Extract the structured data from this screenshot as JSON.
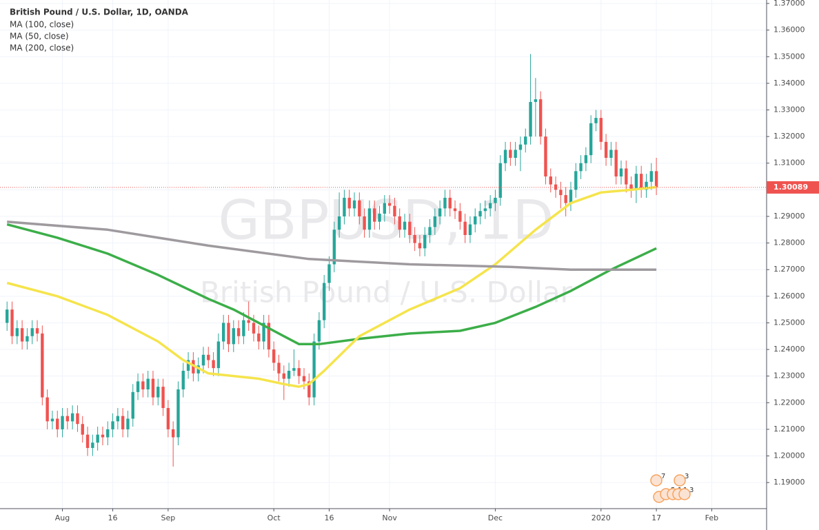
{
  "chart_data": {
    "type": "candlestick",
    "title": "British Pound / U.S. Dollar, 1D, OANDA",
    "watermark": "GBPUSD, 1D",
    "watermark_subtitle": "British Pound / U.S. Dollar",
    "grid": true,
    "up_color": "#26a69a",
    "down_color": "#ef5350",
    "xlim": [
      -1.4,
      150.9
    ],
    "ylim": [
      1.1802,
      1.3713
    ],
    "xticks": [
      {
        "value": 11,
        "label": "Aug"
      },
      {
        "value": 21,
        "label": "16"
      },
      {
        "value": 32,
        "label": "Sep"
      },
      {
        "value": 53,
        "label": "Oct"
      },
      {
        "value": 64,
        "label": "16"
      },
      {
        "value": 76,
        "label": "Nov"
      },
      {
        "value": 97,
        "label": "Dec"
      },
      {
        "value": 118,
        "label": "2020"
      },
      {
        "value": 129,
        "label": "17"
      },
      {
        "value": 140,
        "label": "Feb"
      }
    ],
    "yticks": [
      {
        "value": 1.19,
        "label": "1.19000"
      },
      {
        "value": 1.2,
        "label": "1.20000"
      },
      {
        "value": 1.21,
        "label": "1.21000"
      },
      {
        "value": 1.22,
        "label": "1.22000"
      },
      {
        "value": 1.23,
        "label": "1.23000"
      },
      {
        "value": 1.24,
        "label": "1.24000"
      },
      {
        "value": 1.25,
        "label": "1.25000"
      },
      {
        "value": 1.26,
        "label": "1.26000"
      },
      {
        "value": 1.27,
        "label": "1.27000"
      },
      {
        "value": 1.28,
        "label": "1.28000"
      },
      {
        "value": 1.29,
        "label": "1.29000"
      },
      {
        "value": 1.3,
        "label": "1.30000"
      },
      {
        "value": 1.31,
        "label": "1.31000"
      },
      {
        "value": 1.32,
        "label": "1.32000"
      },
      {
        "value": 1.33,
        "label": "1.33000"
      },
      {
        "value": 1.34,
        "label": "1.34000"
      },
      {
        "value": 1.35,
        "label": "1.35000"
      },
      {
        "value": 1.36,
        "label": "1.36000"
      },
      {
        "value": 1.37,
        "label": "1.37000"
      }
    ],
    "last_price": {
      "value": 1.30089,
      "label": "1.30089"
    },
    "open": [
      1.25,
      1.255,
      1.245,
      1.248,
      1.243,
      1.245,
      1.248,
      1.246,
      1.222,
      1.213,
      1.214,
      1.21,
      1.215,
      1.213,
      1.216,
      1.212,
      1.208,
      1.203,
      1.205,
      1.208,
      1.207,
      1.21,
      1.213,
      1.215,
      1.21,
      1.214,
      1.224,
      1.228,
      1.225,
      1.229,
      1.222,
      1.226,
      1.218,
      1.21,
      1.207,
      1.225,
      1.232,
      1.236,
      1.231,
      1.234,
      1.238,
      1.236,
      1.233,
      1.243,
      1.25,
      1.242,
      1.248,
      1.245,
      1.251,
      1.25,
      1.246,
      1.243,
      1.25,
      1.24,
      1.235,
      1.231,
      1.229,
      1.232,
      1.233,
      1.23,
      1.228,
      1.222,
      1.243,
      1.251,
      1.265,
      1.272,
      1.285,
      1.29,
      1.297,
      1.293,
      1.296,
      1.29,
      1.285,
      1.293,
      1.288,
      1.291,
      1.295,
      1.294,
      1.29,
      1.285,
      1.288,
      1.283,
      1.28,
      1.278,
      1.283,
      1.286,
      1.29,
      1.293,
      1.297,
      1.293,
      1.292,
      1.288,
      1.283,
      1.287,
      1.29,
      1.292,
      1.293,
      1.295,
      1.297,
      1.31,
      1.315,
      1.312,
      1.315,
      1.317,
      1.32,
      1.333,
      1.334,
      1.32,
      1.305,
      1.302,
      1.3,
      1.298,
      1.295,
      1.3,
      1.307,
      1.31,
      1.313,
      1.325,
      1.327,
      1.318,
      1.312,
      1.315,
      1.305,
      1.308,
      1.302,
      1.3,
      1.306,
      1.3,
      1.303,
      1.307
    ],
    "high": [
      1.258,
      1.258,
      1.251,
      1.251,
      1.248,
      1.251,
      1.251,
      1.249,
      1.225,
      1.217,
      1.217,
      1.218,
      1.218,
      1.219,
      1.219,
      1.215,
      1.211,
      1.208,
      1.211,
      1.211,
      1.213,
      1.216,
      1.218,
      1.218,
      1.217,
      1.227,
      1.231,
      1.231,
      1.232,
      1.232,
      1.229,
      1.229,
      1.221,
      1.213,
      1.228,
      1.235,
      1.239,
      1.239,
      1.237,
      1.241,
      1.241,
      1.239,
      1.246,
      1.253,
      1.253,
      1.251,
      1.251,
      1.254,
      1.258,
      1.253,
      1.249,
      1.253,
      1.253,
      1.243,
      1.238,
      1.234,
      1.235,
      1.24,
      1.236,
      1.233,
      1.231,
      1.246,
      1.254,
      1.268,
      1.275,
      1.288,
      1.299,
      1.3,
      1.3,
      1.299,
      1.299,
      1.293,
      1.296,
      1.296,
      1.294,
      1.298,
      1.298,
      1.297,
      1.293,
      1.291,
      1.291,
      1.286,
      1.283,
      1.286,
      1.289,
      1.293,
      1.296,
      1.3,
      1.3,
      1.296,
      1.295,
      1.291,
      1.29,
      1.293,
      1.295,
      1.296,
      1.298,
      1.3,
      1.313,
      1.318,
      1.318,
      1.318,
      1.32,
      1.323,
      1.351,
      1.342,
      1.337,
      1.323,
      1.308,
      1.305,
      1.303,
      1.301,
      1.303,
      1.31,
      1.313,
      1.316,
      1.328,
      1.33,
      1.33,
      1.321,
      1.318,
      1.318,
      1.311,
      1.311,
      1.305,
      1.309,
      1.309,
      1.306,
      1.31,
      1.312
    ],
    "low": [
      1.247,
      1.242,
      1.242,
      1.24,
      1.24,
      1.242,
      1.243,
      1.219,
      1.21,
      1.21,
      1.207,
      1.207,
      1.21,
      1.21,
      1.209,
      1.205,
      1.2,
      1.2,
      1.202,
      1.204,
      1.204,
      1.207,
      1.21,
      1.207,
      1.207,
      1.211,
      1.221,
      1.222,
      1.222,
      1.219,
      1.219,
      1.215,
      1.207,
      1.196,
      1.204,
      1.222,
      1.229,
      1.228,
      1.228,
      1.231,
      1.233,
      1.23,
      1.23,
      1.24,
      1.239,
      1.239,
      1.242,
      1.242,
      1.247,
      1.243,
      1.24,
      1.24,
      1.237,
      1.232,
      1.228,
      1.221,
      1.226,
      1.23,
      1.227,
      1.225,
      1.219,
      1.219,
      1.24,
      1.248,
      1.262,
      1.269,
      1.282,
      1.287,
      1.29,
      1.29,
      1.287,
      1.282,
      1.282,
      1.285,
      1.285,
      1.288,
      1.291,
      1.287,
      1.282,
      1.282,
      1.28,
      1.277,
      1.275,
      1.275,
      1.28,
      1.283,
      1.287,
      1.29,
      1.29,
      1.289,
      1.285,
      1.28,
      1.28,
      1.284,
      1.287,
      1.289,
      1.29,
      1.292,
      1.294,
      1.307,
      1.309,
      1.309,
      1.307,
      1.314,
      1.317,
      1.32,
      1.317,
      1.302,
      1.299,
      1.297,
      1.293,
      1.29,
      1.292,
      1.297,
      1.304,
      1.307,
      1.31,
      1.322,
      1.315,
      1.309,
      1.309,
      1.302,
      1.302,
      1.299,
      1.297,
      1.295,
      1.297,
      1.297,
      1.3,
      1.298
    ],
    "close": [
      1.255,
      1.245,
      1.248,
      1.243,
      1.245,
      1.248,
      1.246,
      1.222,
      1.213,
      1.214,
      1.21,
      1.215,
      1.213,
      1.216,
      1.212,
      1.208,
      1.203,
      1.205,
      1.208,
      1.207,
      1.21,
      1.213,
      1.215,
      1.21,
      1.214,
      1.224,
      1.228,
      1.225,
      1.229,
      1.222,
      1.226,
      1.218,
      1.21,
      1.207,
      1.225,
      1.232,
      1.236,
      1.231,
      1.234,
      1.238,
      1.236,
      1.233,
      1.243,
      1.25,
      1.242,
      1.248,
      1.245,
      1.251,
      1.25,
      1.246,
      1.243,
      1.25,
      1.24,
      1.235,
      1.231,
      1.229,
      1.232,
      1.233,
      1.23,
      1.228,
      1.222,
      1.243,
      1.251,
      1.265,
      1.272,
      1.285,
      1.29,
      1.297,
      1.293,
      1.296,
      1.29,
      1.285,
      1.293,
      1.288,
      1.291,
      1.295,
      1.294,
      1.29,
      1.285,
      1.288,
      1.283,
      1.28,
      1.278,
      1.283,
      1.286,
      1.29,
      1.293,
      1.297,
      1.293,
      1.292,
      1.288,
      1.283,
      1.287,
      1.29,
      1.292,
      1.293,
      1.295,
      1.297,
      1.31,
      1.315,
      1.312,
      1.315,
      1.317,
      1.32,
      1.333,
      1.334,
      1.32,
      1.305,
      1.302,
      1.3,
      1.298,
      1.295,
      1.3,
      1.307,
      1.31,
      1.313,
      1.325,
      1.327,
      1.318,
      1.312,
      1.315,
      1.305,
      1.308,
      1.302,
      1.3,
      1.306,
      1.3,
      1.303,
      1.307,
      1.301
    ],
    "series": [
      {
        "name": "MA (100, close)",
        "color": "#3cae49",
        "x": [
          0,
          10,
          20,
          30,
          40,
          45,
          50,
          55,
          58,
          62,
          70,
          80,
          90,
          97,
          105,
          112,
          120,
          129
        ],
        "values": [
          1.287,
          1.282,
          1.276,
          1.268,
          1.259,
          1.255,
          1.25,
          1.245,
          1.242,
          1.242,
          1.244,
          1.246,
          1.247,
          1.25,
          1.256,
          1.262,
          1.27,
          1.278
        ]
      },
      {
        "name": "MA (50, close)",
        "color": "#f5e44c",
        "x": [
          0,
          10,
          20,
          30,
          35,
          40,
          50,
          55,
          58,
          60,
          63,
          70,
          80,
          90,
          97,
          105,
          112,
          118,
          124,
          129
        ],
        "values": [
          1.265,
          1.26,
          1.253,
          1.243,
          1.236,
          1.231,
          1.229,
          1.227,
          1.226,
          1.227,
          1.232,
          1.245,
          1.255,
          1.263,
          1.272,
          1.285,
          1.295,
          1.299,
          1.3,
          1.301
        ]
      },
      {
        "name": "MA (200, close)",
        "color": "#9e9a9e",
        "x": [
          0,
          20,
          40,
          60,
          80,
          100,
          112,
          129
        ],
        "values": [
          1.288,
          1.285,
          1.279,
          1.274,
          1.272,
          1.271,
          1.27,
          1.27
        ]
      }
    ],
    "event_labels": [
      "7",
      "3",
      "4",
      "5",
      "1",
      "1",
      "3"
    ]
  }
}
